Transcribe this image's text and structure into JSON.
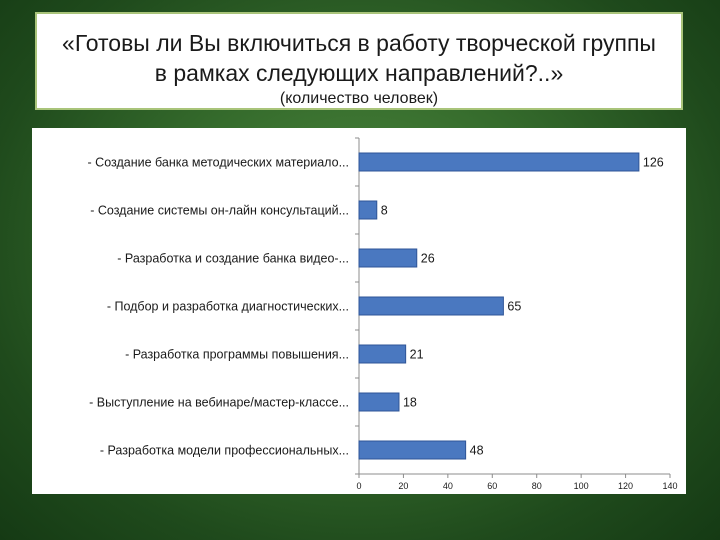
{
  "title": {
    "main": "«Готовы ли Вы включиться в работу творческой группы в рамках следующих направлений?..»",
    "subtitle": "(количество человек)"
  },
  "colors": {
    "bar_fill": "#4a78c0",
    "bar_stroke": "#2f5597",
    "background_green": "#356b2c",
    "title_border": "#a9c47a"
  },
  "chart_data": {
    "type": "bar",
    "orientation": "horizontal",
    "title": "«Готовы ли Вы включиться в работу творческой группы в рамках следующих направлений?..»",
    "subtitle": "(количество человек)",
    "categories": [
      "- Создание банка методических материало...",
      "- Создание системы он-лайн консультаций...",
      "- Разработка и создание банка видео-...",
      "- Подбор и разработка диагностических...",
      "- Разработка программы повышения...",
      "- Выступление на вебинаре/мастер-классе...",
      "- Разработка модели профессиональных..."
    ],
    "values": [
      126,
      8,
      26,
      65,
      21,
      18,
      48
    ],
    "xlim": [
      0,
      140
    ],
    "xticks": [
      "0",
      "20",
      "40",
      "60",
      "80",
      "100",
      "120",
      "140"
    ],
    "grid": false,
    "legend": "none"
  }
}
